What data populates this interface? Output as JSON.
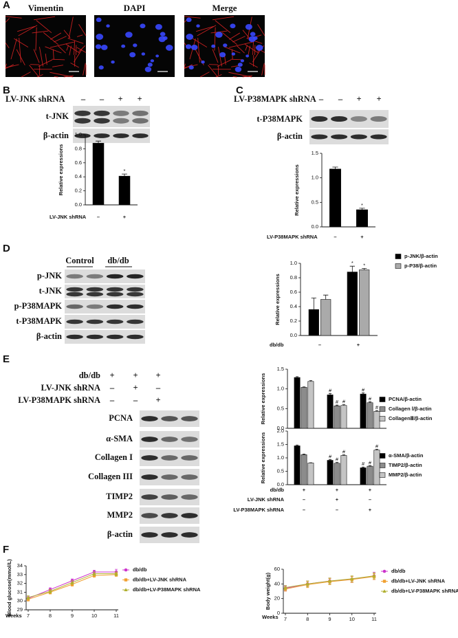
{
  "panel_labels": [
    "A",
    "B",
    "C",
    "D",
    "E",
    "F"
  ],
  "panel_a": {
    "channels": [
      "Vimentin",
      "DAPI",
      "Merge"
    ]
  },
  "panel_b": {
    "treatment": "LV-JNK shRNA",
    "lanes": [
      "–",
      "–",
      "+",
      "+"
    ],
    "bands": [
      "t-JNK",
      "β-actin"
    ]
  },
  "panel_c": {
    "treatment": "LV-P38MAPK shRNA",
    "lanes": [
      "–",
      "–",
      "+",
      "+"
    ],
    "bands": [
      "t-P38MAPK",
      "β-actin"
    ]
  },
  "panel_d": {
    "groups": [
      "Control",
      "db/db"
    ],
    "bands": [
      "p-JNK",
      "t-JNK",
      "p-P38MAPK",
      "t-P38MAPK",
      "β-actin"
    ]
  },
  "panel_e": {
    "conditions": [
      {
        "label": "db/db",
        "lanes": [
          "+",
          "+",
          "+"
        ]
      },
      {
        "label": "LV-JNK shRNA",
        "lanes": [
          "–",
          "+",
          "–"
        ]
      },
      {
        "label": "LV-P38MAPK shRNA",
        "lanes": [
          "–",
          "–",
          "+"
        ]
      }
    ],
    "bands": [
      "PCNA",
      "α-SMA",
      "Collagen I",
      "Collagen III",
      "TIMP2",
      "MMP2",
      "β-actin"
    ]
  },
  "chart_data": [
    {
      "type": "bar",
      "y_label": "Relative expressions",
      "x_label": "LV-JNK shRNA",
      "categories": [
        "–",
        "+"
      ],
      "ylim": [
        0,
        1.0
      ],
      "yticks": [
        {
          "value": 0,
          "label": "0.0"
        },
        0.2,
        0.4,
        0.6,
        0.8,
        {
          "value": 1,
          "label": "1.0"
        }
      ],
      "series": [
        {
          "color": "#000000",
          "values": [
            0.88,
            0.41
          ],
          "errors": [
            0.03,
            0.03
          ],
          "annotations": [
            null,
            "*"
          ]
        }
      ]
    },
    {
      "type": "bar",
      "y_label": "Relative expressions",
      "x_label": "LV-P38MAPK shRNA",
      "categories": [
        "–",
        "+"
      ],
      "ylim": [
        0,
        1.5
      ],
      "yticks": [
        {
          "value": 0,
          "label": "0.0"
        },
        0.5,
        {
          "value": 1,
          "label": "1.0"
        },
        1.5
      ],
      "series": [
        {
          "color": "#000000",
          "values": [
            1.18,
            0.35
          ],
          "errors": [
            0.04,
            0.03
          ],
          "annotations": [
            null,
            "*"
          ]
        }
      ]
    },
    {
      "type": "bar",
      "y_label": "Relative expressions",
      "x_label": "db/db",
      "categories": [
        "–",
        "+"
      ],
      "ylim": [
        0,
        1.0
      ],
      "yticks": [
        {
          "value": 0,
          "label": "0.0"
        },
        0.2,
        0.4,
        0.6,
        0.8,
        {
          "value": 1,
          "label": "1.0"
        }
      ],
      "series": [
        {
          "name": "p-JNK/β-actin",
          "color": "#000000",
          "values": [
            0.36,
            0.88
          ],
          "errors": [
            0.16,
            0.08
          ],
          "annotations": [
            null,
            "*"
          ]
        },
        {
          "name": "p-P38/β-actin",
          "color": "#aaaaaa",
          "values": [
            0.5,
            0.91
          ],
          "errors": [
            0.06,
            0.02
          ],
          "annotations": [
            null,
            "*"
          ]
        }
      ]
    },
    {
      "type": "bar",
      "y_label": "Relative expressions",
      "ylim": [
        0,
        1.5
      ],
      "yticks": [
        {
          "value": 0,
          "label": "0.0"
        },
        0.5,
        {
          "value": 1,
          "label": "1.0"
        },
        1.5
      ],
      "series": [
        {
          "name": "PCNA/β-actin",
          "color": "#000000",
          "values": [
            1.29,
            0.85,
            0.87
          ],
          "errors": [
            0.02,
            0.03,
            0.03
          ],
          "annotations": [
            null,
            "#",
            "#"
          ]
        },
        {
          "name": "Collagen Ⅰ/β-actin",
          "color": "#8c8c8c",
          "values": [
            1.04,
            0.57,
            0.65
          ],
          "errors": [
            0.01,
            0.02,
            0.02
          ],
          "annotations": [
            null,
            "#",
            "#"
          ]
        },
        {
          "name": "CollagenⅢ/β-actin",
          "color": "#c4c4c4",
          "values": [
            1.19,
            0.58,
            0.43
          ],
          "errors": [
            0.02,
            0.02,
            0.02
          ],
          "annotations": [
            null,
            "#",
            "#"
          ]
        }
      ]
    },
    {
      "type": "bar",
      "y_label": "Relative expressions",
      "ylim": [
        0,
        2.0
      ],
      "yticks": [
        {
          "value": 0,
          "label": "0.0"
        },
        0.5,
        {
          "value": 1,
          "label": "1.0"
        },
        1.5,
        {
          "value": 2,
          "label": "2.0"
        }
      ],
      "x_rows": [
        {
          "label": "db/db",
          "values": [
            "+",
            "+",
            "+"
          ]
        },
        {
          "label": "LV-JNK shRNA",
          "values": [
            "–",
            "+",
            "–"
          ]
        },
        {
          "label": "LV-P38MAPK shRNA",
          "values": [
            "–",
            "–",
            "+"
          ]
        }
      ],
      "series": [
        {
          "name": "α-SMA/β-actin",
          "color": "#000000",
          "values": [
            1.45,
            0.91,
            0.63
          ],
          "errors": [
            0.03,
            0.03,
            0.03
          ],
          "annotations": [
            null,
            "#",
            "#"
          ]
        },
        {
          "name": "TIMP2/β-actin",
          "color": "#8c8c8c",
          "values": [
            1.12,
            0.8,
            0.69
          ],
          "errors": [
            0.02,
            0.03,
            0.02
          ],
          "annotations": [
            null,
            "#",
            "#"
          ]
        },
        {
          "name": "MMP2/β-actin",
          "color": "#c4c4c4",
          "values": [
            0.81,
            1.09,
            1.29
          ],
          "errors": [
            0.01,
            0.02,
            0.03
          ],
          "annotations": [
            null,
            "#",
            "#"
          ]
        }
      ]
    },
    {
      "type": "line",
      "y_label": "Blood glucose(mmol/L)",
      "x_label": "Weeks",
      "x": [
        7,
        8,
        9,
        10,
        11
      ],
      "xlim": [
        7,
        11
      ],
      "xticks": [
        7,
        8,
        9,
        10,
        11
      ],
      "ylim": [
        29,
        34
      ],
      "yticks": [
        29,
        30,
        31,
        32,
        33,
        34
      ],
      "series": [
        {
          "name": "db/db",
          "color": "#cc33cc",
          "marker": "circle",
          "values": [
            30.3,
            31.3,
            32.3,
            33.3,
            33.3
          ],
          "errors": [
            0.2,
            0.2,
            0.2,
            0.2,
            0.3
          ]
        },
        {
          "name": "db/db+LV-JNK shRNA",
          "color": "#f0a030",
          "marker": "square",
          "values": [
            30.2,
            31.0,
            31.9,
            32.9,
            33.0
          ],
          "errors": [
            0.2,
            0.2,
            0.2,
            0.2,
            0.2
          ]
        },
        {
          "name": "db/db+LV-P38MAPK shRNA",
          "color": "#b0b030",
          "marker": "triangle",
          "values": [
            30.4,
            31.1,
            32.1,
            33.1,
            33.1
          ],
          "errors": [
            0.2,
            0.2,
            0.2,
            0.2,
            0.2
          ]
        }
      ]
    },
    {
      "type": "line",
      "y_label": "Body weight(g)",
      "x_label": "Weeks",
      "x": [
        7,
        8,
        9,
        10,
        11
      ],
      "xlim": [
        7,
        11
      ],
      "xticks": [
        7,
        8,
        9,
        10,
        11
      ],
      "ylim": [
        0,
        60
      ],
      "yticks": [
        0,
        20,
        40,
        60
      ],
      "series": [
        {
          "name": "db/db",
          "color": "#cc33cc",
          "marker": "circle",
          "values": [
            34,
            40,
            44,
            46,
            51
          ],
          "errors": [
            3,
            4,
            4,
            4,
            5
          ]
        },
        {
          "name": "db/db+LV-JNK shRNA",
          "color": "#f0a030",
          "marker": "square",
          "values": [
            33,
            39,
            43,
            46,
            50
          ],
          "errors": [
            3,
            4,
            4,
            4,
            4
          ]
        },
        {
          "name": "db/db+LV-P38MAPK shRNA",
          "color": "#b0b030",
          "marker": "triangle",
          "values": [
            35,
            40,
            44,
            47,
            51
          ],
          "errors": [
            3,
            4,
            4,
            4,
            4
          ]
        }
      ]
    }
  ]
}
